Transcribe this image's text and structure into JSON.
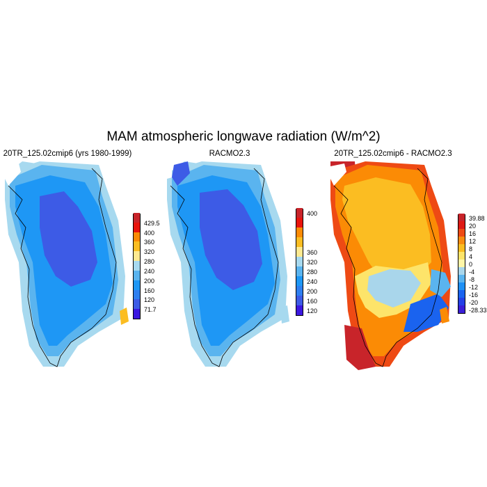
{
  "title": "MAM atmospheric longwave radiation (W/m^2)",
  "panels": [
    {
      "title": "20TR_125.02cmip6 (yrs 1980-1999)",
      "colorbar": {
        "colors": [
          "#3b18e0",
          "#3d5be6",
          "#2f7ff0",
          "#1e97f5",
          "#5ab4ef",
          "#a7d9ef",
          "#fee990",
          "#fbbd22",
          "#fb8b05",
          "#e8140c",
          "#c8242a"
        ],
        "labels": [
          "71.7",
          "120",
          "160",
          "200",
          "240",
          "280",
          "320",
          "360",
          "400",
          "429.5"
        ]
      }
    },
    {
      "title": "RACMO2.3",
      "colorbar": {
        "colors": [
          "#3b18e0",
          "#3d5be6",
          "#2f7ff0",
          "#1e97f5",
          "#5ab4ef",
          "#a7d9ef",
          "#fee990",
          "#fbbd22",
          "#fb8b05",
          "#e8140c",
          "#c8242a"
        ],
        "labels": [
          "120",
          "160",
          "200",
          "240",
          "280",
          "320",
          "360",
          "400"
        ]
      }
    },
    {
      "title": "20TR_125.02cmip6 - RACMO2.3",
      "colorbar": {
        "colors": [
          "#3a1fd8",
          "#2440e6",
          "#1a63ef",
          "#1e90f5",
          "#5ab4ef",
          "#a9d6eb",
          "#fff6a8",
          "#fde46a",
          "#fbbd22",
          "#f88c10",
          "#ee4a14",
          "#de1a14",
          "#c8242a"
        ],
        "labels": [
          "-28.33",
          "-20",
          "-16",
          "-12",
          "-8",
          "-4",
          "0",
          "4",
          "8",
          "12",
          "16",
          "20",
          "39.88"
        ]
      }
    }
  ]
}
